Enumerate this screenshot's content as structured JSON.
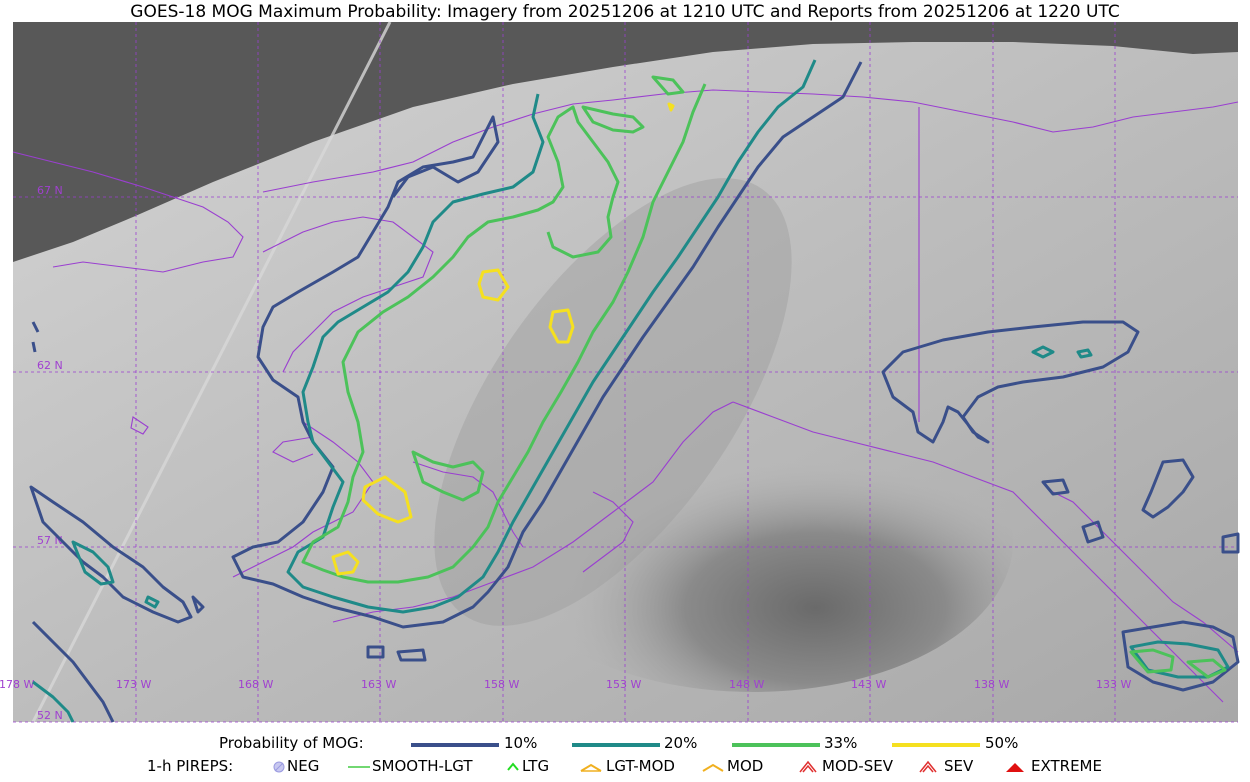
{
  "title": "GOES-18 MOG Maximum Probability: Imagery from 20251206 at 1210 UTC and Reports from 20251206 at 1220 UTC",
  "map": {
    "lat_labels": [
      "67 N",
      "62 N",
      "57 N",
      "52 N"
    ],
    "lon_labels": [
      "178 W",
      "173 W",
      "168 W",
      "163 W",
      "158 W",
      "153 W",
      "148 W",
      "143 W",
      "138 W",
      "133 W"
    ],
    "colors": {
      "grid": "#9a3fd0",
      "coast": "#9a3fd0",
      "p10": "#3a4f8a",
      "p20": "#1f8a88",
      "p33": "#4cc25a",
      "p50": "#f5e020",
      "space": "#585858"
    }
  },
  "legend": {
    "probability_label": "Probability of MOG:",
    "levels": [
      "10%",
      "20%",
      "33%",
      "50%"
    ],
    "pirep_label": "1-h PIREPS:",
    "pireps": [
      "NEG",
      "SMOOTH-LGT",
      "LTG",
      "LGT-MOD",
      "MOD",
      "MOD-SEV",
      "SEV",
      "EXTREME"
    ]
  }
}
